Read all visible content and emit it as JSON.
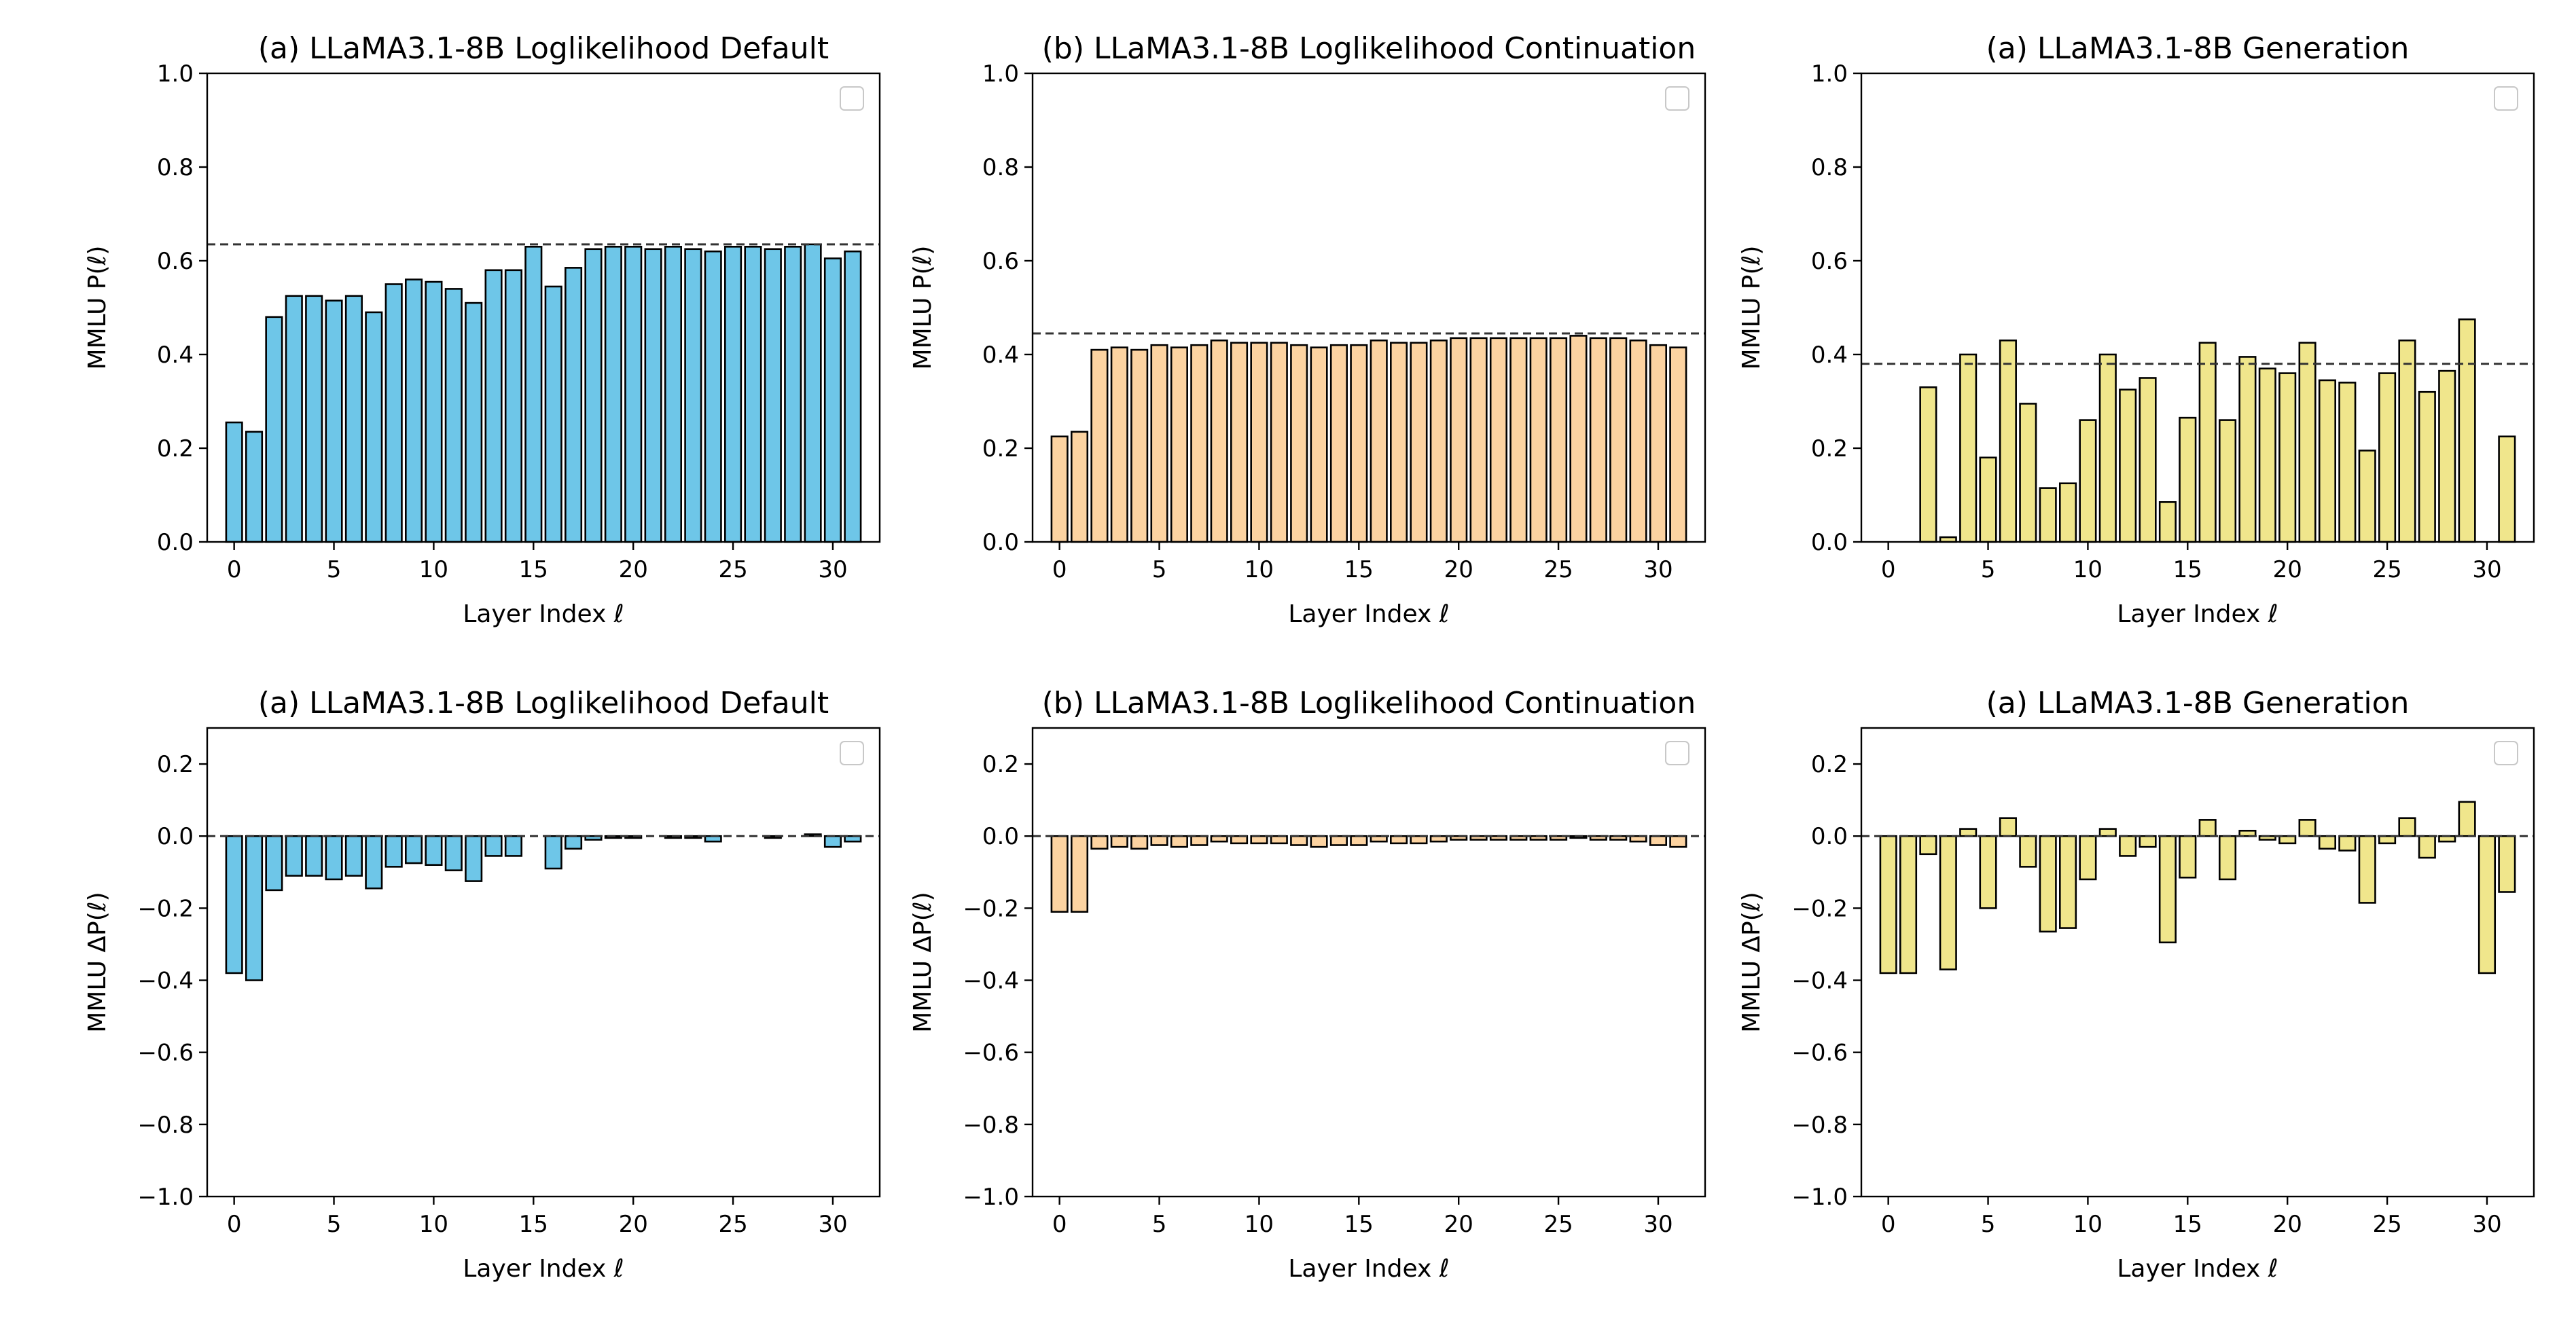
{
  "chart_data": [
    {
      "type": "bar",
      "title": "(a) LLaMA3.1-8B Loglikelihood Default",
      "xlabel": "Layer Index ℓ",
      "ylabel": "MMLU P(ℓ)",
      "ylim": [
        0.0,
        1.0
      ],
      "yticks": [
        "0.0",
        "0.2",
        "0.4",
        "0.6",
        "0.8",
        "1.0"
      ],
      "xticks": [
        "0",
        "5",
        "10",
        "15",
        "20",
        "25",
        "30"
      ],
      "color": "#6ec6e8",
      "reference_line": 0.635,
      "legend_placement": "top-right",
      "x": [
        0,
        1,
        2,
        3,
        4,
        5,
        6,
        7,
        8,
        9,
        10,
        11,
        12,
        13,
        14,
        15,
        16,
        17,
        18,
        19,
        20,
        21,
        22,
        23,
        24,
        25,
        26,
        27,
        28,
        29,
        30,
        31
      ],
      "values": [
        0.255,
        0.235,
        0.48,
        0.525,
        0.525,
        0.515,
        0.525,
        0.49,
        0.55,
        0.56,
        0.555,
        0.54,
        0.51,
        0.58,
        0.58,
        0.63,
        0.545,
        0.585,
        0.625,
        0.63,
        0.63,
        0.625,
        0.63,
        0.625,
        0.62,
        0.63,
        0.63,
        0.625,
        0.63,
        0.635,
        0.605,
        0.62
      ]
    },
    {
      "type": "bar",
      "title": "(b) LLaMA3.1-8B Loglikelihood Continuation",
      "xlabel": "Layer Index ℓ",
      "ylabel": "MMLU P(ℓ)",
      "ylim": [
        0.0,
        1.0
      ],
      "yticks": [
        "0.0",
        "0.2",
        "0.4",
        "0.6",
        "0.8",
        "1.0"
      ],
      "xticks": [
        "0",
        "5",
        "10",
        "15",
        "20",
        "25",
        "30"
      ],
      "color": "#fcd3a1",
      "reference_line": 0.445,
      "legend_placement": "top-right",
      "x": [
        0,
        1,
        2,
        3,
        4,
        5,
        6,
        7,
        8,
        9,
        10,
        11,
        12,
        13,
        14,
        15,
        16,
        17,
        18,
        19,
        20,
        21,
        22,
        23,
        24,
        25,
        26,
        27,
        28,
        29,
        30,
        31
      ],
      "values": [
        0.225,
        0.235,
        0.41,
        0.415,
        0.41,
        0.42,
        0.415,
        0.42,
        0.43,
        0.425,
        0.425,
        0.425,
        0.42,
        0.415,
        0.42,
        0.42,
        0.43,
        0.425,
        0.425,
        0.43,
        0.435,
        0.435,
        0.435,
        0.435,
        0.435,
        0.435,
        0.44,
        0.435,
        0.435,
        0.43,
        0.42,
        0.415
      ]
    },
    {
      "type": "bar",
      "title": "(a) LLaMA3.1-8B Generation",
      "xlabel": "Layer Index ℓ",
      "ylabel": "MMLU P(ℓ)",
      "ylim": [
        0.0,
        1.0
      ],
      "yticks": [
        "0.0",
        "0.2",
        "0.4",
        "0.6",
        "0.8",
        "1.0"
      ],
      "xticks": [
        "0",
        "5",
        "10",
        "15",
        "20",
        "25",
        "30"
      ],
      "color": "#f0e68c",
      "reference_line": 0.38,
      "legend_placement": "top-right",
      "x": [
        0,
        1,
        2,
        3,
        4,
        5,
        6,
        7,
        8,
        9,
        10,
        11,
        12,
        13,
        14,
        15,
        16,
        17,
        18,
        19,
        20,
        21,
        22,
        23,
        24,
        25,
        26,
        27,
        28,
        29,
        30,
        31
      ],
      "values": [
        0.0,
        0.0,
        0.33,
        0.01,
        0.4,
        0.18,
        0.43,
        0.295,
        0.115,
        0.125,
        0.26,
        0.4,
        0.325,
        0.35,
        0.085,
        0.265,
        0.425,
        0.26,
        0.395,
        0.37,
        0.36,
        0.425,
        0.345,
        0.34,
        0.195,
        0.36,
        0.43,
        0.32,
        0.365,
        0.475,
        0.0,
        0.225
      ]
    },
    {
      "type": "bar",
      "title": "(a) LLaMA3.1-8B Loglikelihood Default",
      "xlabel": "Layer Index ℓ",
      "ylabel": "MMLU ΔP(ℓ)",
      "ylim": [
        -1.0,
        0.3
      ],
      "yticks": [
        "0.2",
        "0.0",
        "−0.2",
        "−0.4",
        "−0.6",
        "−0.8",
        "−1.0"
      ],
      "xticks": [
        "0",
        "5",
        "10",
        "15",
        "20",
        "25",
        "30"
      ],
      "color": "#6ec6e8",
      "reference_line": 0.0,
      "legend_placement": "top-right",
      "x": [
        0,
        1,
        2,
        3,
        4,
        5,
        6,
        7,
        8,
        9,
        10,
        11,
        12,
        13,
        14,
        15,
        16,
        17,
        18,
        19,
        20,
        21,
        22,
        23,
        24,
        25,
        26,
        27,
        28,
        29,
        30,
        31
      ],
      "values": [
        -0.38,
        -0.4,
        -0.15,
        -0.11,
        -0.11,
        -0.12,
        -0.11,
        -0.145,
        -0.085,
        -0.075,
        -0.08,
        -0.095,
        -0.125,
        -0.055,
        -0.055,
        0.0,
        -0.09,
        -0.035,
        -0.01,
        -0.005,
        -0.005,
        0.0,
        -0.005,
        -0.005,
        -0.015,
        0.0,
        0.0,
        -0.005,
        0.0,
        0.005,
        -0.03,
        -0.015
      ]
    },
    {
      "type": "bar",
      "title": "(b) LLaMA3.1-8B Loglikelihood Continuation",
      "xlabel": "Layer Index ℓ",
      "ylabel": "MMLU ΔP(ℓ)",
      "ylim": [
        -1.0,
        0.3
      ],
      "yticks": [
        "0.2",
        "0.0",
        "−0.2",
        "−0.4",
        "−0.6",
        "−0.8",
        "−1.0"
      ],
      "xticks": [
        "0",
        "5",
        "10",
        "15",
        "20",
        "25",
        "30"
      ],
      "color": "#fcd3a1",
      "reference_line": 0.0,
      "legend_placement": "top-right",
      "x": [
        0,
        1,
        2,
        3,
        4,
        5,
        6,
        7,
        8,
        9,
        10,
        11,
        12,
        13,
        14,
        15,
        16,
        17,
        18,
        19,
        20,
        21,
        22,
        23,
        24,
        25,
        26,
        27,
        28,
        29,
        30,
        31
      ],
      "values": [
        -0.21,
        -0.21,
        -0.035,
        -0.03,
        -0.035,
        -0.025,
        -0.03,
        -0.025,
        -0.015,
        -0.02,
        -0.02,
        -0.02,
        -0.025,
        -0.03,
        -0.025,
        -0.025,
        -0.015,
        -0.02,
        -0.02,
        -0.015,
        -0.01,
        -0.01,
        -0.01,
        -0.01,
        -0.01,
        -0.01,
        -0.005,
        -0.01,
        -0.01,
        -0.015,
        -0.025,
        -0.03
      ]
    },
    {
      "type": "bar",
      "title": "(a) LLaMA3.1-8B Generation",
      "xlabel": "Layer Index ℓ",
      "ylabel": "MMLU ΔP(ℓ)",
      "ylim": [
        -1.0,
        0.3
      ],
      "yticks": [
        "0.2",
        "0.0",
        "−0.2",
        "−0.4",
        "−0.6",
        "−0.8",
        "−1.0"
      ],
      "xticks": [
        "0",
        "5",
        "10",
        "15",
        "20",
        "25",
        "30"
      ],
      "color": "#f0e68c",
      "reference_line": 0.0,
      "legend_placement": "top-right",
      "x": [
        0,
        1,
        2,
        3,
        4,
        5,
        6,
        7,
        8,
        9,
        10,
        11,
        12,
        13,
        14,
        15,
        16,
        17,
        18,
        19,
        20,
        21,
        22,
        23,
        24,
        25,
        26,
        27,
        28,
        29,
        30,
        31
      ],
      "values": [
        -0.38,
        -0.38,
        -0.05,
        -0.37,
        0.02,
        -0.2,
        0.05,
        -0.085,
        -0.265,
        -0.255,
        -0.12,
        0.02,
        -0.055,
        -0.03,
        -0.295,
        -0.115,
        0.045,
        -0.12,
        0.015,
        -0.01,
        -0.02,
        0.045,
        -0.035,
        -0.04,
        -0.185,
        -0.02,
        0.05,
        -0.06,
        -0.015,
        0.095,
        -0.38,
        -0.155
      ]
    }
  ]
}
